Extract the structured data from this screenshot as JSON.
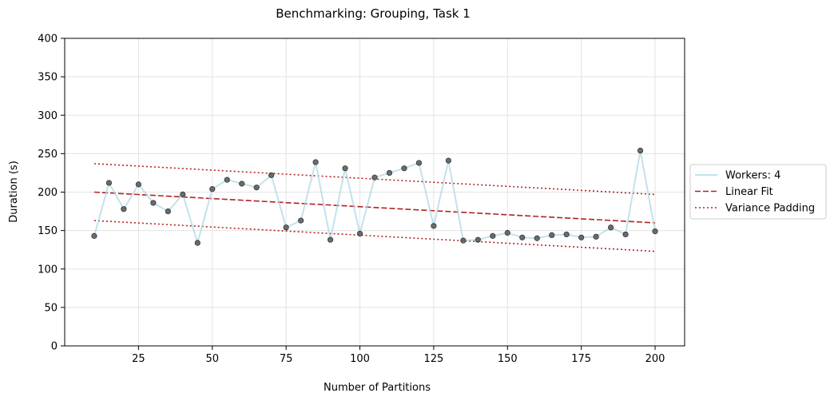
{
  "chart_data": {
    "type": "line",
    "title": "Benchmarking: Grouping, Task 1",
    "xlabel": "Number of Partitions",
    "ylabel": "Duration (s)",
    "xlim": [
      0,
      210
    ],
    "ylim": [
      0,
      400
    ],
    "xticks": [
      25,
      50,
      75,
      100,
      125,
      150,
      175,
      200
    ],
    "yticks": [
      0,
      50,
      100,
      150,
      200,
      250,
      300,
      350,
      400
    ],
    "grid": true,
    "legend_position": "right",
    "series": [
      {
        "name": "Workers: 4",
        "style": "line-with-markers",
        "color": "#add8e6",
        "marker_color": "#555555",
        "x": [
          10,
          15,
          20,
          25,
          30,
          35,
          40,
          45,
          50,
          55,
          60,
          65,
          70,
          75,
          80,
          85,
          90,
          95,
          100,
          105,
          110,
          115,
          120,
          125,
          130,
          135,
          140,
          145,
          150,
          155,
          160,
          165,
          170,
          175,
          180,
          185,
          190,
          195,
          200
        ],
        "y": [
          143,
          212,
          178,
          210,
          186,
          175,
          197,
          134,
          204,
          216,
          211,
          206,
          222,
          154,
          163,
          239,
          138,
          231,
          146,
          219,
          225,
          231,
          238,
          156,
          241,
          137,
          138,
          143,
          147,
          141,
          140,
          144,
          145,
          141,
          142,
          154,
          145,
          254,
          149
        ]
      },
      {
        "name": "Linear Fit",
        "style": "dashed",
        "color": "#b22222",
        "x": [
          10,
          200
        ],
        "y": [
          200,
          160
        ]
      },
      {
        "name": "Variance Padding",
        "style": "dotted",
        "color": "#b22222",
        "segments": [
          {
            "x": [
              10,
              200
            ],
            "y": [
              237,
              197
            ]
          },
          {
            "x": [
              10,
              200
            ],
            "y": [
              163,
              123
            ]
          }
        ]
      }
    ]
  }
}
